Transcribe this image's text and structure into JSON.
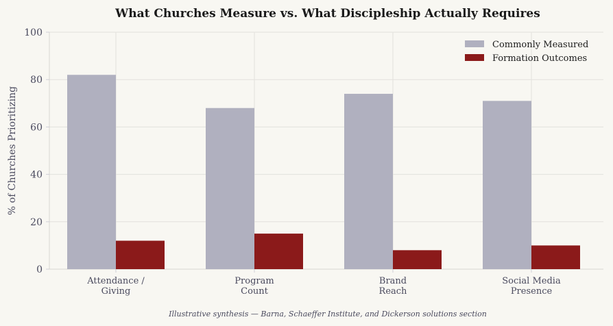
{
  "chart_data": {
    "type": "bar",
    "title": "What Churches Measure vs. What Discipleship Actually Requires",
    "xlabel": "",
    "ylabel": "% of Churches Prioritizing",
    "ylim": [
      0,
      100
    ],
    "yticks": [
      0,
      20,
      40,
      60,
      80,
      100
    ],
    "grid": true,
    "legend_position": "top-right",
    "categories": [
      [
        "Attendance /",
        "Giving"
      ],
      [
        "Program",
        "Count"
      ],
      [
        "Brand",
        "Reach"
      ],
      [
        "Social Media",
        "Presence"
      ]
    ],
    "series": [
      {
        "name": "Commonly Measured",
        "color": "#b0b0bf",
        "values": [
          82,
          68,
          74,
          71
        ]
      },
      {
        "name": "Formation Outcomes",
        "color": "#8b1a1a",
        "values": [
          12,
          15,
          8,
          10
        ]
      }
    ],
    "source_note": "Illustrative synthesis — Barna, Schaeffer Institute, and Dickerson solutions section"
  }
}
